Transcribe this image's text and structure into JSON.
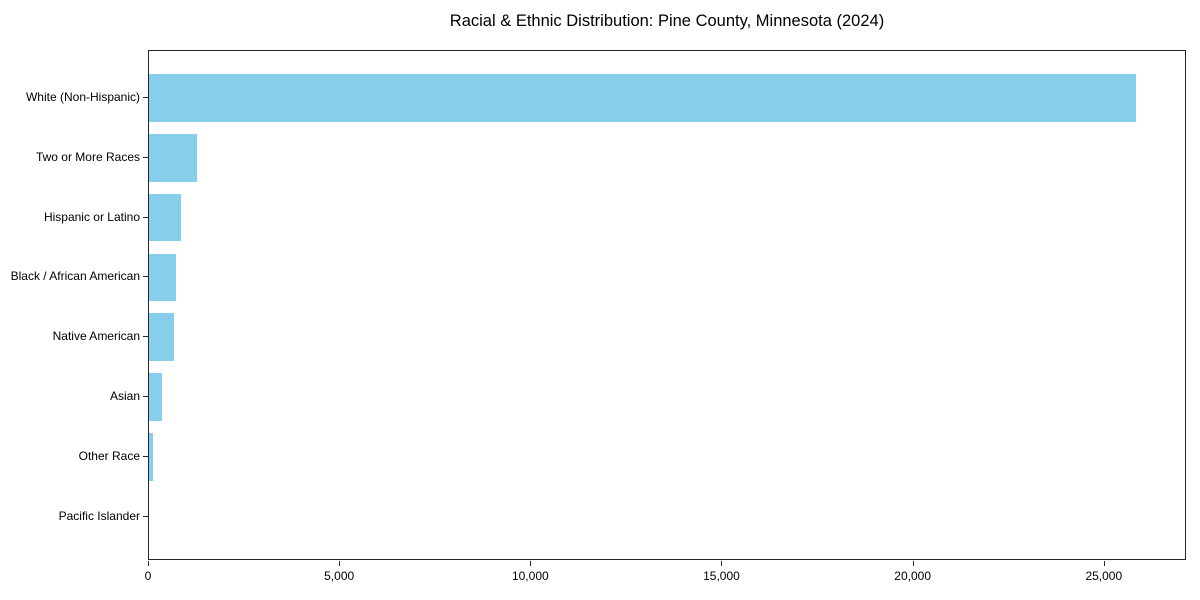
{
  "page": {
    "background": "#ffffff"
  },
  "chart_data": {
    "type": "bar",
    "orientation": "horizontal",
    "title": "Racial & Ethnic Distribution: Pine County, Minnesota (2024)",
    "categories": [
      "White (Non-Hispanic)",
      "Two or More Races",
      "Hispanic or Latino",
      "Black / African American",
      "Native American",
      "Asian",
      "Other Race",
      "Pacific Islander"
    ],
    "values": [
      25860,
      1260,
      840,
      700,
      660,
      340,
      105,
      0
    ],
    "xlabel": "",
    "ylabel": "",
    "xlim": [
      0,
      27150
    ],
    "xticks": [
      0,
      5000,
      10000,
      15000,
      20000,
      25000
    ],
    "xtick_labels": [
      "0",
      "5,000",
      "10,000",
      "15,000",
      "20,000",
      "25,000"
    ],
    "bar_color": "#87CEEB",
    "axis_color": "#262626",
    "text_color": "#000000",
    "grid": false,
    "legend_position": "none"
  }
}
